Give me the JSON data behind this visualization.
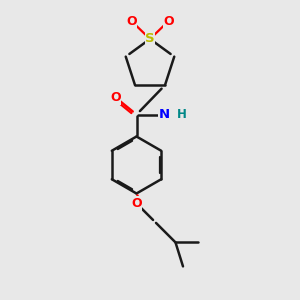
{
  "bg_color": "#e8e8e8",
  "bond_color": "#1a1a1a",
  "bond_lw": 1.8,
  "S_color": "#bbbb00",
  "O_color": "#ff0000",
  "N_color": "#0000ff",
  "H_color": "#008888",
  "font_size": 9,
  "xlim": [
    0,
    10
  ],
  "ylim": [
    0,
    10
  ],
  "figsize": [
    3.0,
    3.0
  ],
  "dpi": 100
}
